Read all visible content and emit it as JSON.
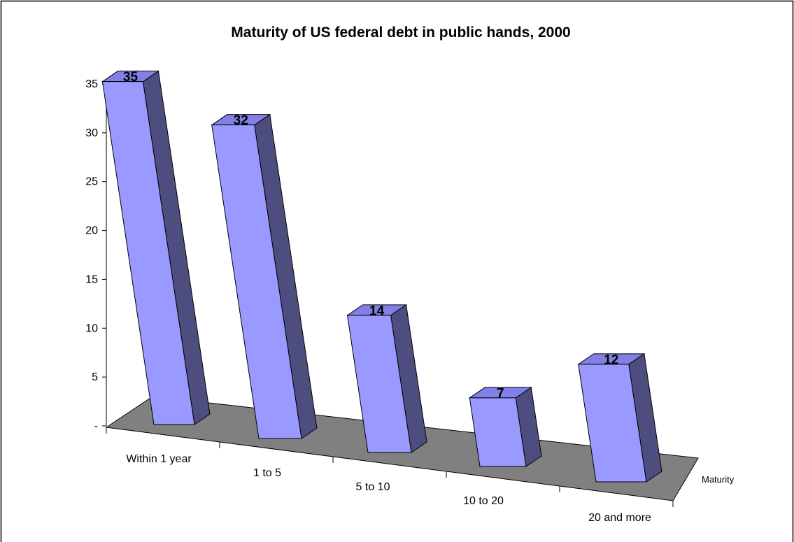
{
  "chart_data": {
    "type": "bar",
    "title": "Maturity of US federal debt in public hands, 2000",
    "xlabel": "Maturity",
    "ylabel": "",
    "categories": [
      "Within 1 year",
      "1 to 5",
      "5 to 10",
      "10 to 20",
      "20 and more"
    ],
    "values": [
      35,
      32,
      14,
      7,
      12
    ],
    "ylim": [
      0,
      35
    ],
    "yticks": [
      "-",
      "5",
      "10",
      "15",
      "20",
      "25",
      "30",
      "35"
    ],
    "three_d": true,
    "grid": false,
    "legend": "none"
  },
  "colors": {
    "bar_front": "#9999ff",
    "bar_side": "#4d4d80",
    "bar_top": "#8080e6",
    "floor": "#808080",
    "border": "#000000"
  }
}
